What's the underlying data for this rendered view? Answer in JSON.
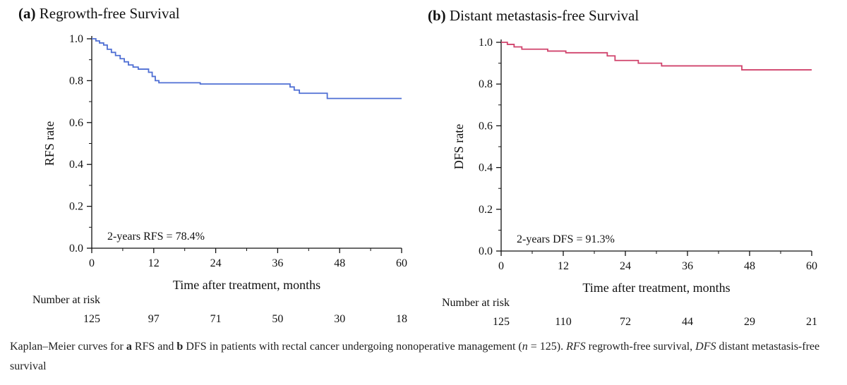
{
  "chart_data": [
    {
      "type": "line",
      "panel_letter": "(a)",
      "title": "Regrowth-free Survival",
      "xlabel": "Time after treatment, months",
      "ylabel": "RFS rate",
      "xlim": [
        0,
        60
      ],
      "ylim": [
        0,
        1
      ],
      "xticks": [
        0,
        12,
        24,
        36,
        48,
        60
      ],
      "yticks": [
        "0.0",
        "0.2",
        "0.4",
        "0.6",
        "0.8",
        "1.0"
      ],
      "grid": false,
      "color": "#4f6fd4",
      "annotation": "2-years RFS = 78.4%",
      "number_at_risk_label": "Number at risk",
      "number_at_risk": [
        125,
        97,
        71,
        50,
        30,
        18
      ],
      "series": [
        {
          "step": true,
          "x": [
            0,
            0.8,
            1.5,
            2.3,
            3.0,
            3.8,
            4.6,
            5.5,
            6.3,
            7.1,
            8.0,
            9.0,
            11.0,
            11.7,
            12.3,
            13.0,
            21.0,
            37.6,
            38.4,
            39.2,
            40.2,
            45.6,
            60.0
          ],
          "y": [
            1.0,
            0.99,
            0.98,
            0.97,
            0.95,
            0.935,
            0.92,
            0.905,
            0.89,
            0.875,
            0.865,
            0.855,
            0.84,
            0.82,
            0.8,
            0.79,
            0.784,
            0.784,
            0.77,
            0.755,
            0.74,
            0.715,
            0.715
          ]
        }
      ]
    },
    {
      "type": "line",
      "panel_letter": "(b)",
      "title": "Distant metastasis-free Survival",
      "xlabel": "Time after treatment, months",
      "ylabel": "DFS rate",
      "xlim": [
        0,
        60
      ],
      "ylim": [
        0,
        1
      ],
      "xticks": [
        0,
        12,
        24,
        36,
        48,
        60
      ],
      "yticks": [
        "0.0",
        "0.2",
        "0.4",
        "0.6",
        "0.8",
        "1.0"
      ],
      "grid": false,
      "color": "#d0436c",
      "annotation": "2-years DFS = 91.3%",
      "number_at_risk_label": "Number at risk",
      "number_at_risk": [
        125,
        110,
        72,
        44,
        29,
        21
      ],
      "series": [
        {
          "step": true,
          "x": [
            0,
            1.2,
            2.5,
            4.0,
            9.0,
            12.5,
            20.5,
            22.0,
            26.5,
            31.0,
            46.5,
            60.0
          ],
          "y": [
            1.0,
            0.99,
            0.978,
            0.967,
            0.958,
            0.95,
            0.935,
            0.913,
            0.9,
            0.887,
            0.868,
            0.868
          ]
        }
      ]
    }
  ],
  "caption": {
    "prefix": "Kaplan–Meier curves for ",
    "a": "a",
    "mid1": " RFS and ",
    "b": "b",
    "mid2": " DFS in patients with rectal cancer undergoing nonoperative management (",
    "n": "n",
    "mid3": " = 125). ",
    "rfs": "RFS",
    "mid4": " regrowth-free survival, ",
    "dfs": "DFS",
    "suffix": " distant metastasis-free survival"
  }
}
